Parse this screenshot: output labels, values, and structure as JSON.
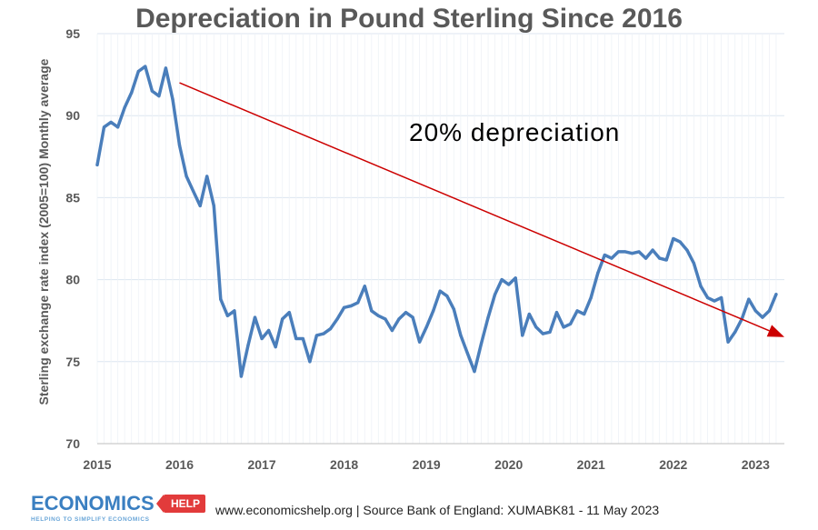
{
  "chart_data": {
    "type": "line",
    "title": "Depreciation in Pound Sterling Since 2016",
    "xlabel": "",
    "ylabel": "Sterling exchange rate index (2005=100) Monthly average",
    "ylim": [
      70,
      95
    ],
    "xlim": [
      2015,
      2023.35
    ],
    "yticks": [
      "70",
      "75",
      "80",
      "85",
      "90",
      "95"
    ],
    "xticks": [
      "2015",
      "2016",
      "2017",
      "2018",
      "2019",
      "2020",
      "2021",
      "2022",
      "2023"
    ],
    "grid": true,
    "annotation": {
      "text": "20% depreciation",
      "arrow_start": [
        2016.0,
        92.0
      ],
      "arrow_end": [
        2023.35,
        76.5
      ]
    },
    "series": [
      {
        "name": "Sterling exchange rate index",
        "color": "#4a7ebb",
        "x_start": 2015.0,
        "x_step": 0.0833333,
        "values": [
          87.0,
          89.3,
          89.6,
          89.3,
          90.5,
          91.4,
          92.7,
          93.0,
          91.5,
          91.2,
          92.9,
          91.0,
          88.2,
          86.3,
          85.4,
          84.5,
          86.3,
          84.5,
          78.8,
          77.8,
          78.1,
          74.1,
          76.0,
          77.7,
          76.4,
          76.9,
          75.9,
          77.6,
          78.0,
          76.4,
          76.4,
          75.0,
          76.6,
          76.7,
          77.0,
          77.6,
          78.3,
          78.4,
          78.6,
          79.6,
          78.1,
          77.8,
          77.6,
          76.9,
          77.6,
          78.0,
          77.7,
          76.2,
          77.1,
          78.1,
          79.3,
          79.0,
          78.2,
          76.6,
          75.5,
          74.4,
          76.1,
          77.7,
          79.1,
          80.0,
          79.7,
          80.1,
          76.6,
          77.9,
          77.1,
          76.7,
          76.8,
          78.0,
          77.1,
          77.3,
          78.1,
          77.9,
          78.9,
          80.4,
          81.5,
          81.3,
          81.7,
          81.7,
          81.6,
          81.7,
          81.3,
          81.8,
          81.3,
          81.2,
          82.5,
          82.3,
          81.8,
          81.0,
          79.6,
          78.9,
          78.7,
          78.9,
          76.2,
          76.8,
          77.6,
          78.8,
          78.1,
          77.7,
          78.1,
          79.1
        ]
      }
    ]
  },
  "footer": {
    "logo_main": "ECONOMICS",
    "logo_help": "HELP",
    "logo_tagline": "HELPING TO SIMPLIFY ECONOMICS",
    "source": "www.economicshelp.org | Source Bank of England: XUMABK81 - 11 May 2023"
  },
  "colors": {
    "line": "#4a7ebb",
    "arrow": "#cc0000",
    "grid": "#dce6f0"
  }
}
